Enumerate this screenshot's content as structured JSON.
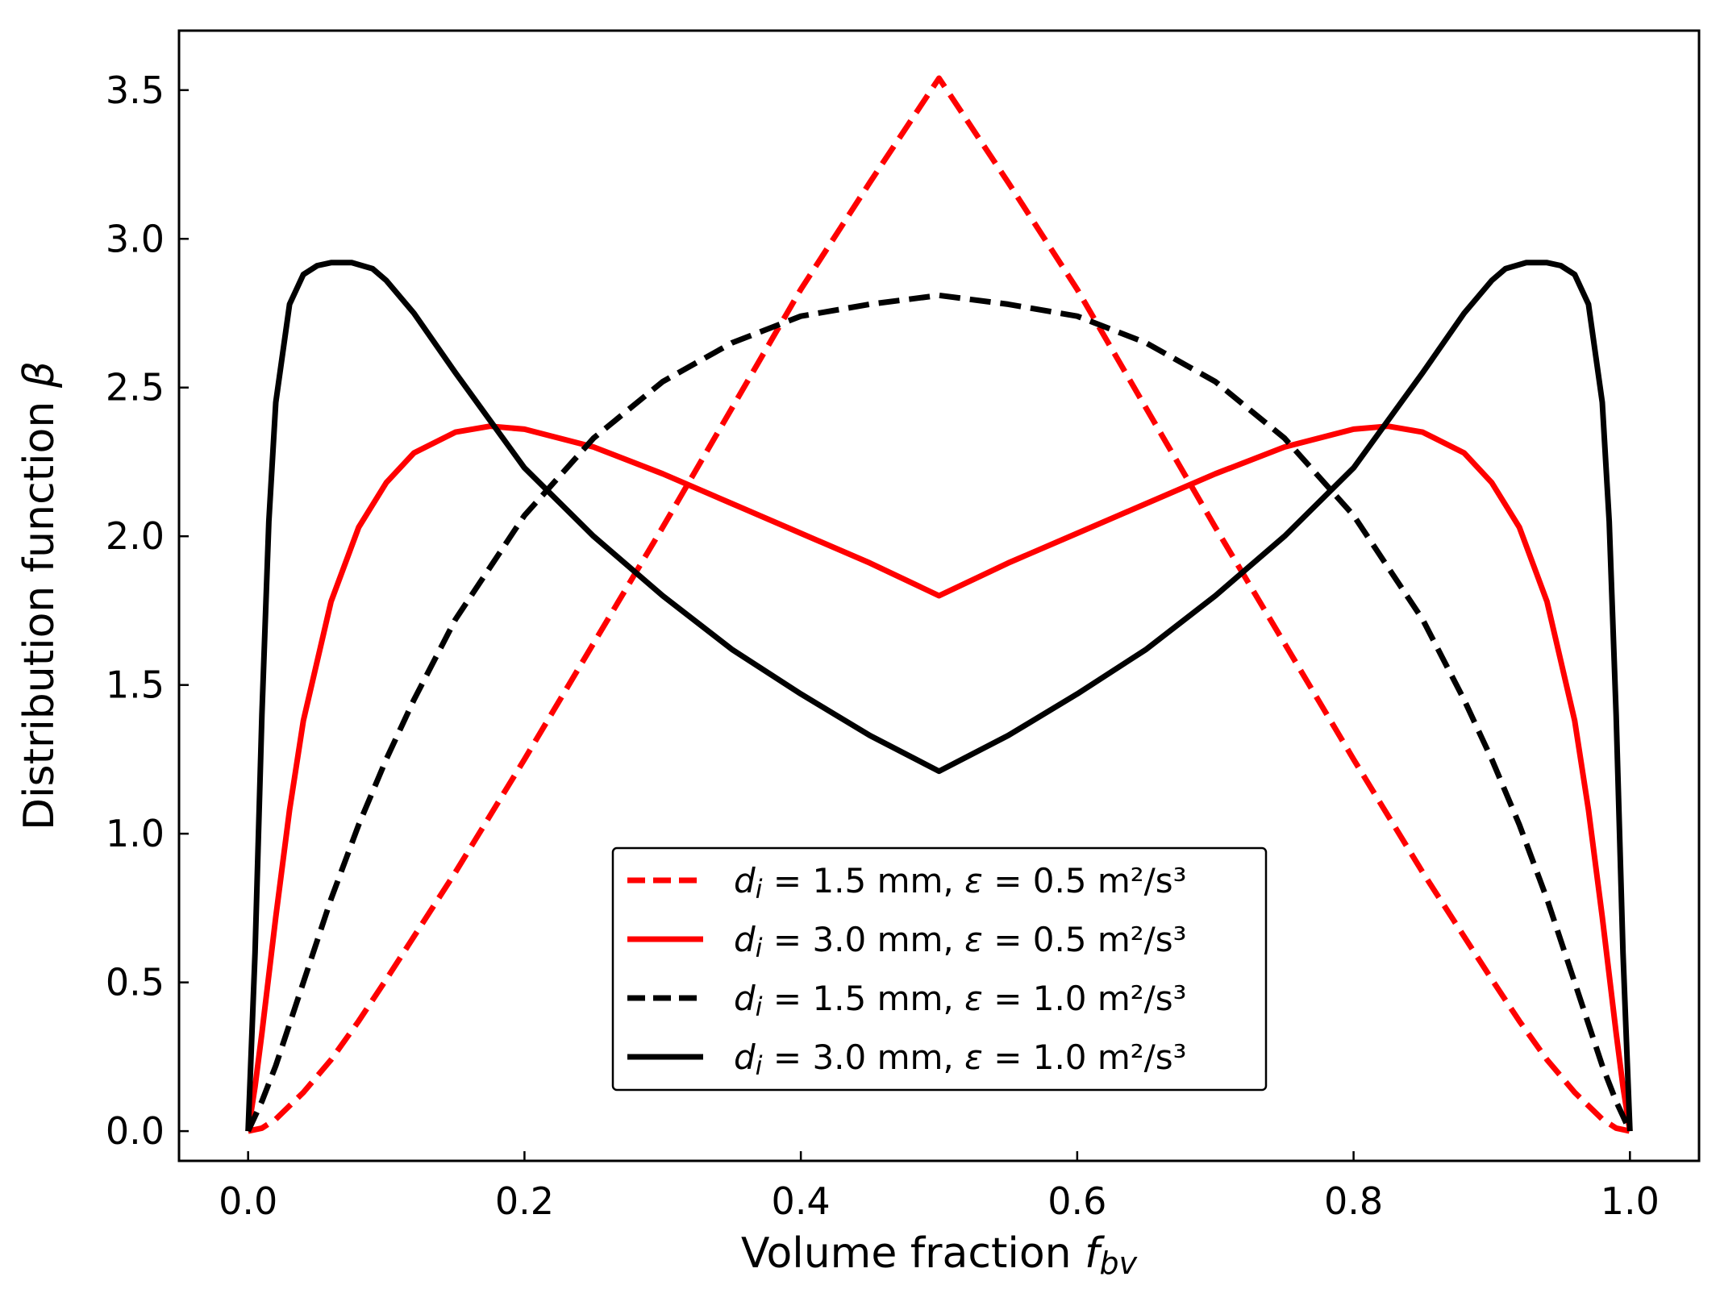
{
  "chart_data": {
    "type": "line",
    "title": "",
    "xlabel": {
      "text": "Volume fraction ",
      "symbol": "f",
      "subscript": "bv"
    },
    "ylabel": {
      "text": "Distribution function ",
      "symbol": "β"
    },
    "xlim": [
      -0.05,
      1.05
    ],
    "ylim": [
      -0.1,
      3.7
    ],
    "xticks": [
      0.0,
      0.2,
      0.4,
      0.6,
      0.8,
      1.0
    ],
    "xtick_labels": [
      "0.0",
      "0.2",
      "0.4",
      "0.6",
      "0.8",
      "1.0"
    ],
    "yticks": [
      0.0,
      0.5,
      1.0,
      1.5,
      2.0,
      2.5,
      3.0,
      3.5
    ],
    "ytick_labels": [
      "0.0",
      "0.5",
      "1.0",
      "1.5",
      "2.0",
      "2.5",
      "3.0",
      "3.5"
    ],
    "grid": false,
    "legend_position": "lower-center",
    "series": [
      {
        "name": "d_i = 1.5 mm, ε = 0.5 m²/s³",
        "legend": {
          "d": "d",
          "sub": "i",
          "size": " = 1.5 mm, ",
          "eps": "ε",
          "rate": " = 0.5 m²/s³"
        },
        "color": "#ff0000",
        "dash": "dashed",
        "x": [
          0,
          0.01,
          0.02,
          0.04,
          0.06,
          0.08,
          0.1,
          0.15,
          0.2,
          0.25,
          0.3,
          0.35,
          0.4,
          0.45,
          0.5,
          0.55,
          0.6,
          0.65,
          0.7,
          0.75,
          0.8,
          0.85,
          0.9,
          0.92,
          0.94,
          0.96,
          0.98,
          0.99,
          1.0
        ],
        "y": [
          0,
          0.01,
          0.04,
          0.13,
          0.24,
          0.37,
          0.51,
          0.87,
          1.25,
          1.64,
          2.03,
          2.43,
          2.83,
          3.19,
          3.54,
          3.19,
          2.83,
          2.43,
          2.03,
          1.64,
          1.25,
          0.87,
          0.51,
          0.37,
          0.24,
          0.13,
          0.04,
          0.01,
          0
        ]
      },
      {
        "name": "d_i = 3.0 mm, ε = 0.5 m²/s³",
        "legend": {
          "d": "d",
          "sub": "i",
          "size": " = 3.0 mm, ",
          "eps": "ε",
          "rate": " = 0.5 m²/s³"
        },
        "color": "#ff0000",
        "dash": "solid",
        "x": [
          0,
          0.005,
          0.01,
          0.02,
          0.03,
          0.04,
          0.06,
          0.08,
          0.1,
          0.12,
          0.15,
          0.175,
          0.2,
          0.25,
          0.3,
          0.35,
          0.4,
          0.45,
          0.5,
          0.55,
          0.6,
          0.65,
          0.7,
          0.75,
          0.8,
          0.825,
          0.85,
          0.88,
          0.9,
          0.92,
          0.94,
          0.96,
          0.97,
          0.98,
          0.99,
          0.995,
          1.0
        ],
        "y": [
          0,
          0.15,
          0.33,
          0.72,
          1.08,
          1.38,
          1.78,
          2.03,
          2.18,
          2.28,
          2.35,
          2.37,
          2.36,
          2.3,
          2.21,
          2.11,
          2.01,
          1.91,
          1.8,
          1.91,
          2.01,
          2.11,
          2.21,
          2.3,
          2.36,
          2.37,
          2.35,
          2.28,
          2.18,
          2.03,
          1.78,
          1.38,
          1.08,
          0.72,
          0.33,
          0.15,
          0
        ]
      },
      {
        "name": "d_i = 1.5 mm, ε = 1.0 m²/s³",
        "legend": {
          "d": "d",
          "sub": "i",
          "size": " = 1.5 mm, ",
          "eps": "ε",
          "rate": " = 1.0 m²/s³"
        },
        "color": "#000000",
        "dash": "dashed",
        "x": [
          0,
          0.01,
          0.02,
          0.04,
          0.06,
          0.08,
          0.1,
          0.12,
          0.15,
          0.2,
          0.25,
          0.3,
          0.35,
          0.4,
          0.45,
          0.5,
          0.55,
          0.6,
          0.65,
          0.7,
          0.75,
          0.8,
          0.85,
          0.88,
          0.9,
          0.92,
          0.94,
          0.96,
          0.98,
          0.99,
          1.0
        ],
        "y": [
          0,
          0.1,
          0.22,
          0.5,
          0.78,
          1.03,
          1.25,
          1.45,
          1.72,
          2.07,
          2.33,
          2.52,
          2.65,
          2.74,
          2.78,
          2.81,
          2.78,
          2.74,
          2.65,
          2.52,
          2.33,
          2.07,
          1.72,
          1.45,
          1.25,
          1.03,
          0.78,
          0.5,
          0.22,
          0.1,
          0
        ]
      },
      {
        "name": "d_i = 3.0 mm, ε = 1.0 m²/s³",
        "legend": {
          "d": "d",
          "sub": "i",
          "size": " = 3.0 mm, ",
          "eps": "ε",
          "rate": " = 1.0 m²/s³"
        },
        "color": "#000000",
        "dash": "solid",
        "x": [
          0,
          0.005,
          0.01,
          0.015,
          0.02,
          0.03,
          0.04,
          0.05,
          0.06,
          0.075,
          0.09,
          0.1,
          0.12,
          0.15,
          0.2,
          0.25,
          0.3,
          0.35,
          0.4,
          0.45,
          0.5,
          0.55,
          0.6,
          0.65,
          0.7,
          0.75,
          0.8,
          0.85,
          0.88,
          0.9,
          0.91,
          0.925,
          0.94,
          0.95,
          0.96,
          0.97,
          0.98,
          0.985,
          0.99,
          0.995,
          1.0
        ],
        "y": [
          0,
          0.6,
          1.4,
          2.05,
          2.45,
          2.78,
          2.88,
          2.91,
          2.92,
          2.92,
          2.9,
          2.86,
          2.75,
          2.55,
          2.23,
          2.0,
          1.8,
          1.62,
          1.47,
          1.33,
          1.21,
          1.33,
          1.47,
          1.62,
          1.8,
          2.0,
          2.23,
          2.55,
          2.75,
          2.86,
          2.9,
          2.92,
          2.92,
          2.91,
          2.88,
          2.78,
          2.45,
          2.05,
          1.4,
          0.6,
          0
        ]
      }
    ]
  }
}
